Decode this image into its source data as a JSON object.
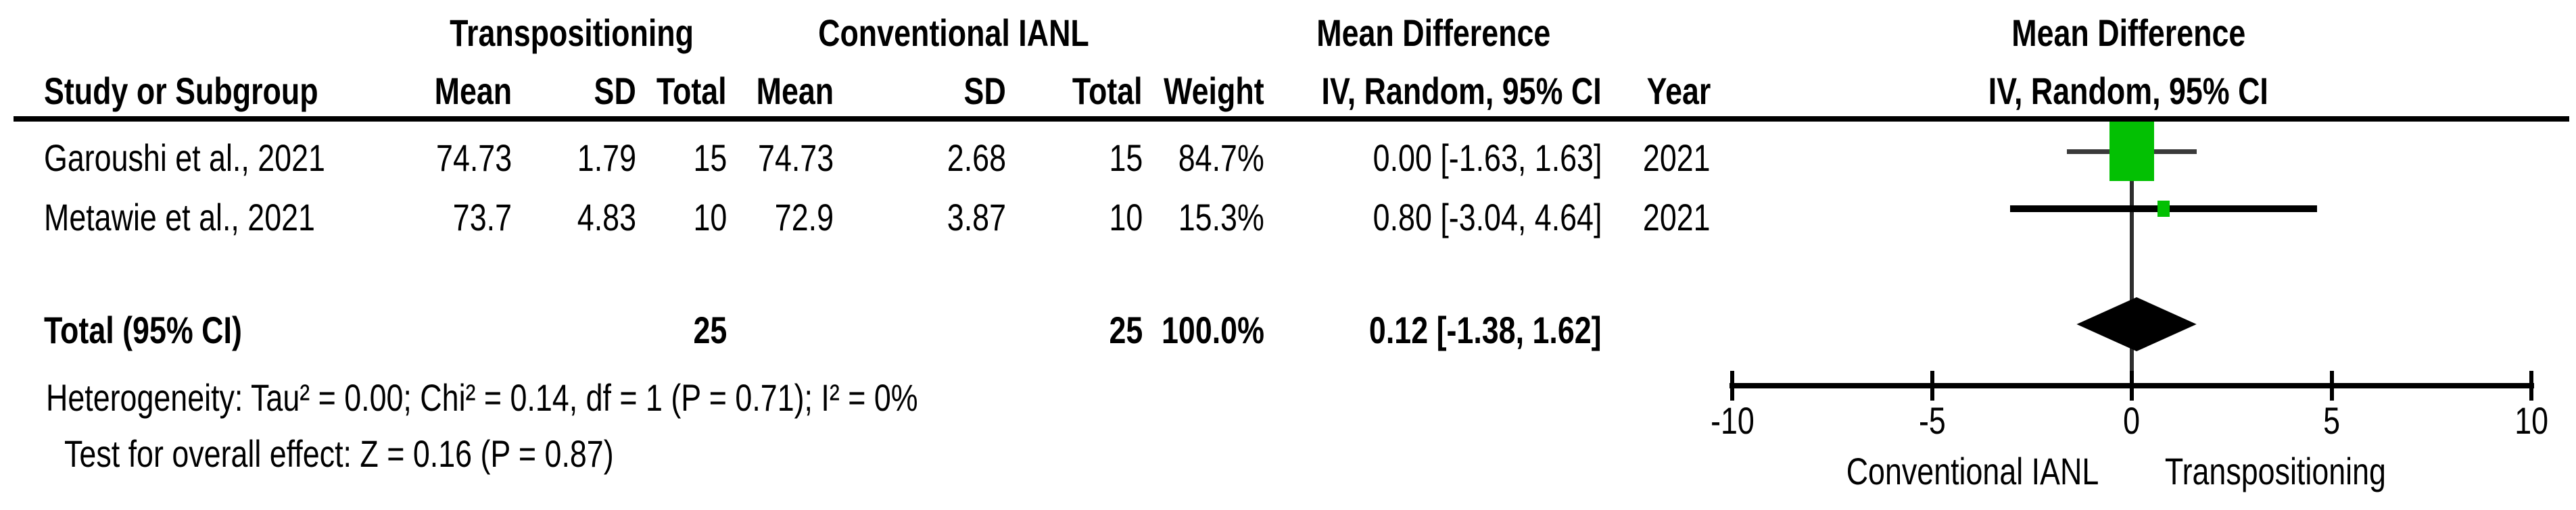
{
  "header": {
    "group1": "Transpositioning",
    "group2": "Conventional IANL",
    "md_left": "Mean Difference",
    "md_right": "Mean Difference",
    "columns": {
      "study": "Study or Subgroup",
      "mean1": "Mean",
      "sd1": "SD",
      "total1": "Total",
      "mean2": "Mean",
      "sd2": "SD",
      "total2": "Total",
      "weight": "Weight",
      "method1": "IV, Random, 95% CI",
      "year": "Year",
      "method2": "IV, Random, 95% CI"
    }
  },
  "studies": [
    {
      "name": "Garoushi et al., 2021",
      "mean1": "74.73",
      "sd1": "1.79",
      "total1": "15",
      "mean2": "74.73",
      "sd2": "2.68",
      "total2": "15",
      "weight": "84.7%",
      "ci": "0.00 [-1.63, 1.63]",
      "year": "2021"
    },
    {
      "name": "Metawie et al., 2021",
      "mean1": "73.7",
      "sd1": "4.83",
      "total1": "10",
      "mean2": "72.9",
      "sd2": "3.87",
      "total2": "10",
      "weight": "15.3%",
      "ci": "0.80 [-3.04, 4.64]",
      "year": "2021"
    }
  ],
  "total_row": {
    "label": "Total (95% CI)",
    "total1": "25",
    "total2": "25",
    "weight": "100.0%",
    "ci": "0.12 [-1.38, 1.62]"
  },
  "footnotes": {
    "heterogeneity": "Heterogeneity: Tau² = 0.00; Chi² = 0.14, df = 1 (P = 0.71); I² = 0%",
    "overall_effect": "Test for overall effect: Z = 0.16 (P = 0.87)"
  },
  "chart_data": {
    "type": "forest",
    "effect_measure": "Mean Difference, IV, Random, 95% CI",
    "axis": {
      "min": -10,
      "max": 10,
      "ticks": [
        -10,
        -5,
        0,
        5,
        10
      ]
    },
    "favours_left": "Conventional IANL",
    "favours_right": "Transpositioning",
    "studies": [
      {
        "name": "Garoushi et al., 2021",
        "estimate": 0.0,
        "ci_low": -1.63,
        "ci_high": 1.63,
        "weight_pct": 84.7,
        "year": 2021
      },
      {
        "name": "Metawie et al., 2021",
        "estimate": 0.8,
        "ci_low": -3.04,
        "ci_high": 4.64,
        "weight_pct": 15.3,
        "year": 2021
      }
    ],
    "total": {
      "estimate": 0.12,
      "ci_low": -1.38,
      "ci_high": 1.62,
      "weight_pct": 100.0
    }
  },
  "colors": {
    "marker_green": "#03C003",
    "ci_line_study1": "#3a3a3a",
    "ci_line_study2": "#000000",
    "diamond": "#000000",
    "zero_line": "#2e2e2e",
    "axis": "#000000"
  }
}
